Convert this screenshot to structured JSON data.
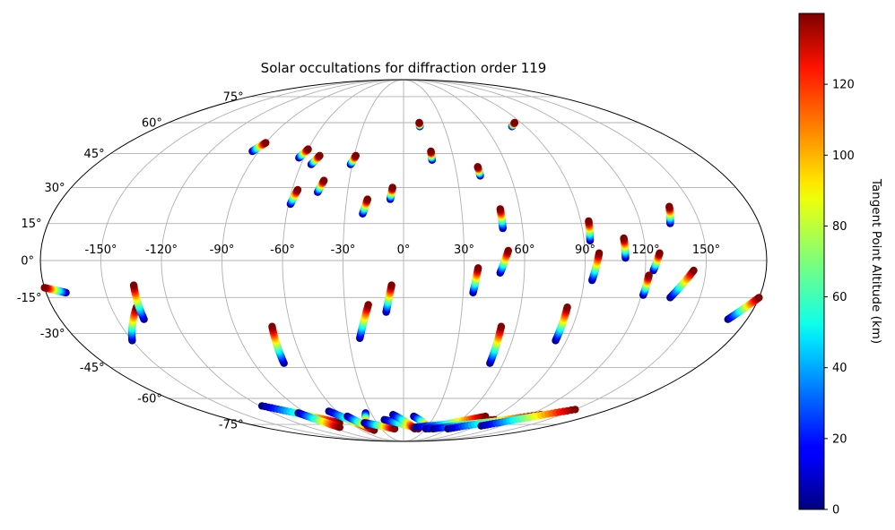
{
  "chart_data": {
    "type": "scatter",
    "projection": "mollweide",
    "title": "Solar occultations for diffraction order 119",
    "grid": true,
    "longitude_ticks": [
      "-150°",
      "-120°",
      "-90°",
      "-60°",
      "-30°",
      "0°",
      "30°",
      "60°",
      "90°",
      "120°",
      "150°"
    ],
    "latitude_ticks": [
      "-75°",
      "-60°",
      "-45°",
      "-30°",
      "-15°",
      "0°",
      "15°",
      "30°",
      "45°",
      "60°",
      "75°"
    ],
    "colorbar": {
      "label": "Tangent Point Altitude (km)",
      "colormap": "jet",
      "range": [
        0,
        140
      ],
      "ticks": [
        "0",
        "20",
        "40",
        "60",
        "80",
        "100",
        "120"
      ]
    },
    "tracks": [
      {
        "lon": [
          -94,
          -90
        ],
        "lat": [
          46,
          50
        ]
      },
      {
        "lon": [
          -63,
          -60
        ],
        "lat": [
          43,
          47
        ]
      },
      {
        "lon": [
          -54,
          -51
        ],
        "lat": [
          40,
          44
        ]
      },
      {
        "lon": [
          -31,
          -29
        ],
        "lat": [
          40,
          44
        ]
      },
      {
        "lon": [
          12,
          12
        ],
        "lat": [
          58,
          60
        ]
      },
      {
        "lon": [
          17,
          17
        ],
        "lat": [
          42,
          46
        ]
      },
      {
        "lon": [
          80,
          85
        ],
        "lat": [
          58,
          60
        ]
      },
      {
        "lon": [
          43,
          43
        ],
        "lat": [
          35,
          39
        ]
      },
      {
        "lon": [
          -59,
          -57
        ],
        "lat": [
          23,
          29
        ]
      },
      {
        "lon": [
          -46,
          -44
        ],
        "lat": [
          28,
          33
        ]
      },
      {
        "lon": [
          -21,
          -19
        ],
        "lat": [
          19,
          25
        ]
      },
      {
        "lon": [
          -7,
          -6
        ],
        "lat": [
          25,
          30
        ]
      },
      {
        "lon": [
          50,
          50
        ],
        "lat": [
          13,
          21
        ]
      },
      {
        "lon": [
          93,
          94
        ],
        "lat": [
          8,
          16
        ]
      },
      {
        "lon": [
          110,
          110
        ],
        "lat": [
          1,
          9
        ]
      },
      {
        "lon": [
          135,
          138
        ],
        "lat": [
          15,
          22
        ]
      },
      {
        "lon": [
          94,
          97
        ],
        "lat": [
          -8,
          3
        ]
      },
      {
        "lon": [
          124,
          127
        ],
        "lat": [
          -4,
          3
        ]
      },
      {
        "lon": [
          121,
          122
        ],
        "lat": [
          -14,
          -6
        ]
      },
      {
        "lon": [
          135,
          144
        ],
        "lat": [
          -15,
          -4
        ]
      },
      {
        "lon": [
          35,
          37
        ],
        "lat": [
          -13,
          -3
        ]
      },
      {
        "lon": [
          48,
          52
        ],
        "lat": [
          -5,
          4
        ]
      },
      {
        "lon": [
          -170,
          -180
        ],
        "lat": [
          -13,
          -11
        ]
      },
      {
        "lon": [
          -150,
          -137
        ],
        "lat": [
          -33,
          -19
        ]
      },
      {
        "lon": [
          -136,
          -135
        ],
        "lat": [
          -24,
          -10
        ]
      },
      {
        "lon": [
          -72,
          -70
        ],
        "lat": [
          -43,
          -27
        ]
      },
      {
        "lon": [
          -24,
          -18
        ],
        "lat": [
          -32,
          -18
        ]
      },
      {
        "lon": [
          -9,
          -6
        ],
        "lat": [
          -21,
          -10
        ]
      },
      {
        "lon": [
          52,
          52
        ],
        "lat": [
          -43,
          -27
        ]
      },
      {
        "lon": [
          84,
          84
        ],
        "lat": [
          -33,
          -19
        ]
      },
      {
        "lon": [
          170,
          180
        ],
        "lat": [
          -24,
          -15
        ]
      },
      {
        "lon": [
          -118,
          -72
        ],
        "lat": [
          -64,
          -74
        ]
      },
      {
        "lon": [
          -97,
          -82
        ],
        "lat": [
          -68,
          -77
        ]
      },
      {
        "lon": [
          -67,
          -45
        ],
        "lat": [
          -67,
          -78
        ]
      },
      {
        "lon": [
          -55,
          -42
        ],
        "lat": [
          -70,
          -79
        ]
      },
      {
        "lon": [
          -35,
          -44
        ],
        "lat": [
          -68,
          -76
        ]
      },
      {
        "lon": [
          -44,
          -12
        ],
        "lat": [
          -74,
          -78
        ]
      },
      {
        "lon": [
          -20,
          20
        ],
        "lat": [
          -72,
          -78
        ]
      },
      {
        "lon": [
          -10,
          15
        ],
        "lat": [
          -69,
          -78
        ]
      },
      {
        "lon": [
          10,
          35
        ],
        "lat": [
          -70,
          -78
        ]
      },
      {
        "lon": [
          15,
          95
        ],
        "lat": [
          -77,
          -72
        ]
      },
      {
        "lon": [
          30,
          80
        ],
        "lat": [
          -78,
          -70
        ]
      },
      {
        "lon": [
          40,
          110
        ],
        "lat": [
          -78,
          -72
        ]
      },
      {
        "lon": [
          60,
          130
        ],
        "lat": [
          -78,
          -69
        ]
      },
      {
        "lon": [
          95,
          150
        ],
        "lat": [
          -76,
          -66
        ]
      }
    ]
  }
}
